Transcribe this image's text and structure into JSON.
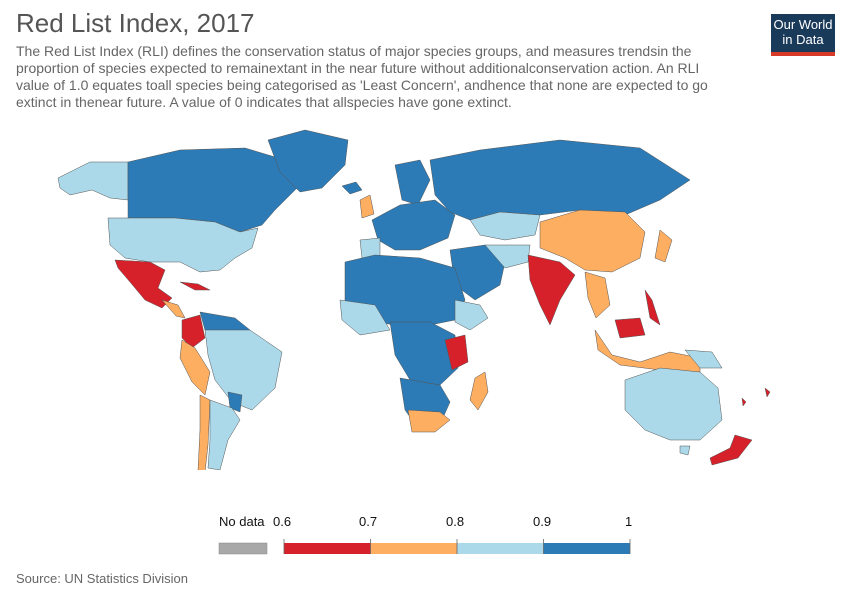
{
  "header": {
    "title": "Red List Index, 2017",
    "subtitle": "The Red List Index (RLI) defines the conservation status of major species groups, and measures trendsin the proportion of species expected to remainextant in the near future without additionalconservation action. An RLI value of 1.0 equates toall species being categorised as 'Least Concern', andhence that none are expected to go extinct in thenear future. A value of 0 indicates that allspecies have gone extinct."
  },
  "logo": {
    "line1": "Our World",
    "line2": "in Data"
  },
  "legend": {
    "no_data_label": "No data",
    "no_data_color": "#a8a8a8",
    "ticks": [
      "0.6",
      "0.7",
      "0.8",
      "0.9",
      "1"
    ],
    "bins": [
      {
        "from": 0.6,
        "to": 0.7,
        "color": "#d6202a"
      },
      {
        "from": 0.7,
        "to": 0.8,
        "color": "#fdae61"
      },
      {
        "from": 0.8,
        "to": 0.9,
        "color": "#abd9e9"
      },
      {
        "from": 0.9,
        "to": 1.0,
        "color": "#2c7bb6"
      }
    ]
  },
  "footer": {
    "source": "Source: UN Statistics Division"
  }
}
